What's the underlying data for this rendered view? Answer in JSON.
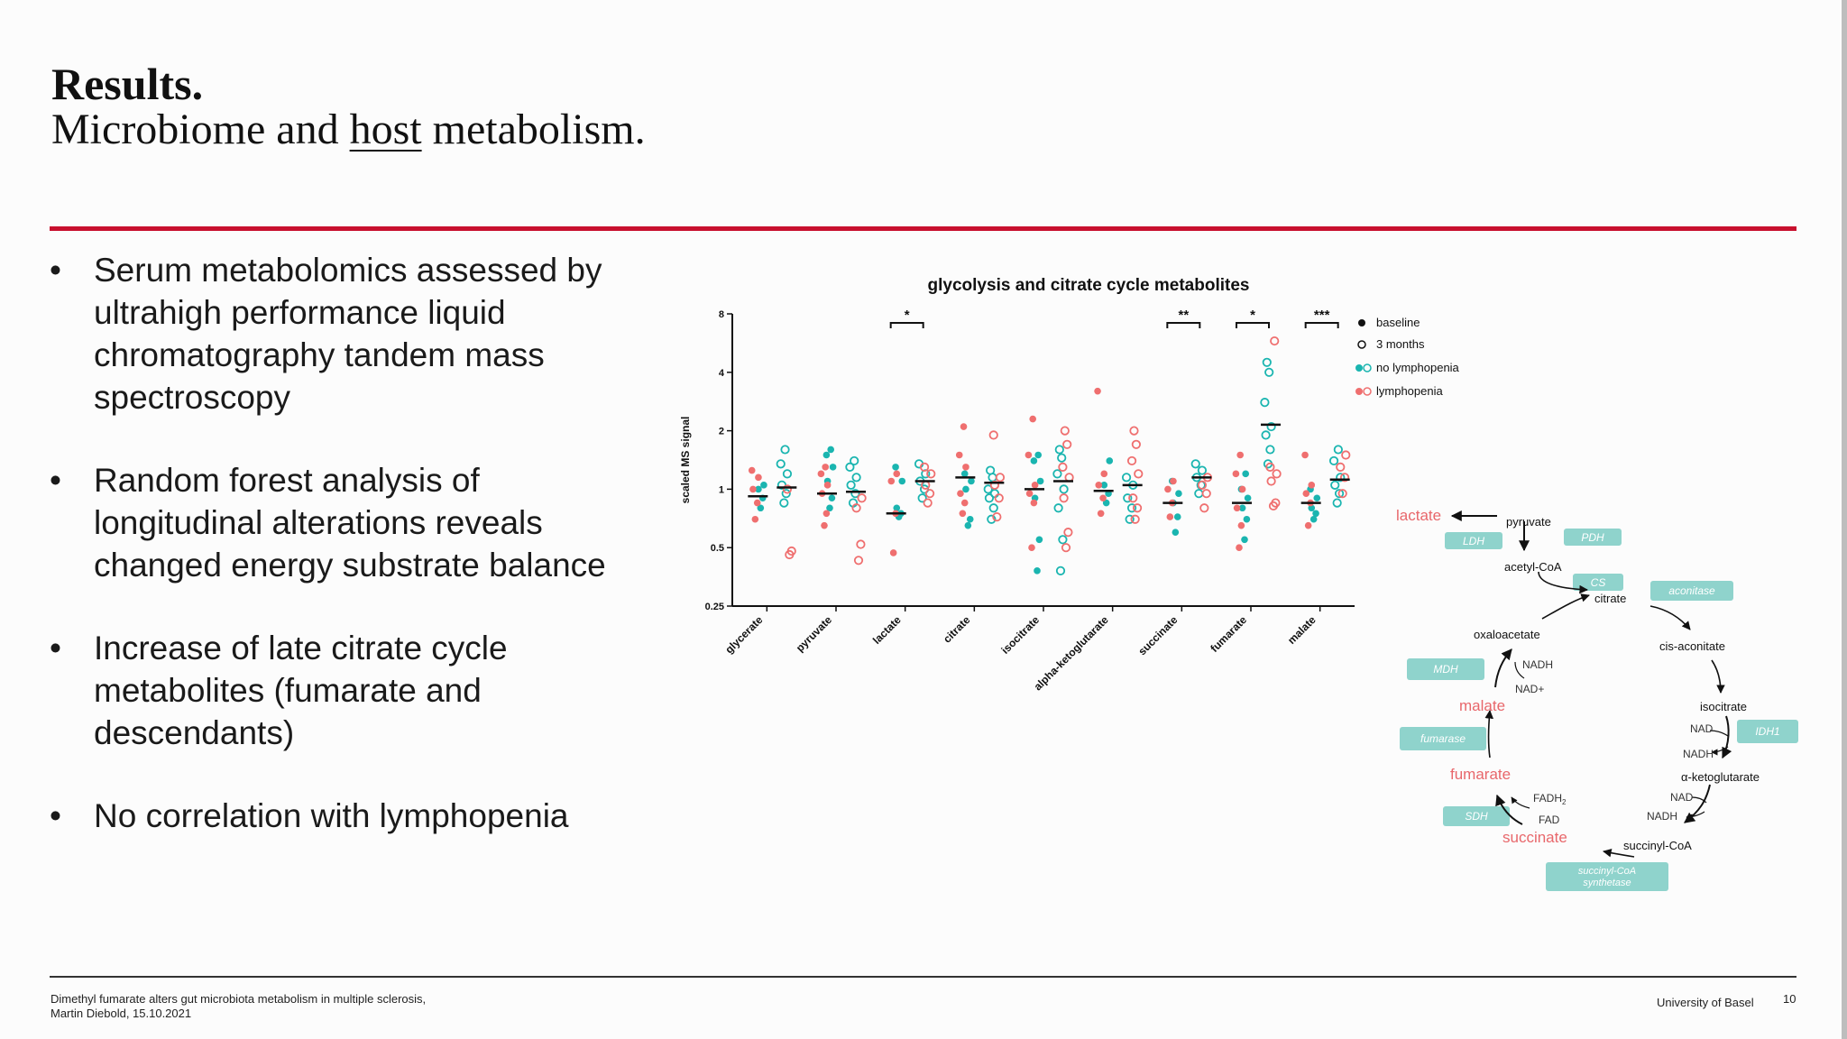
{
  "slide": {
    "title": "Results.",
    "subtitle_before": "Microbiome and ",
    "subtitle_underlined": "host",
    "subtitle_after": " metabolism.",
    "accent_color": "#c8102e",
    "page_number": "10"
  },
  "bullets": [
    "Serum metabolomics assessed by ultrahigh performance liquid chromatography tandem mass spectroscopy",
    "Random forest analysis of longitudinal alterations reveals changed energy substrate balance",
    "Increase of late citrate cycle metabolites (fumarate and descendants)",
    "No correlation with lymphopenia"
  ],
  "bullet_glyph": "•",
  "footer": {
    "line1": "Dimethyl fumarate alters gut microbiota metabolism in multiple sclerosis,",
    "line2": "Martin Diebold, 15.10.2021",
    "institution": "University of Basel"
  },
  "chart_data": {
    "type": "scatter",
    "title": "glycolysis and citrate cycle metabolites",
    "ylabel": "scaled MS signal",
    "yscale": "log2",
    "ylim": [
      0.25,
      8
    ],
    "yticks": [
      "0.25",
      "0.5",
      "1",
      "2",
      "4",
      "8"
    ],
    "ytick_values": [
      0.25,
      0.5,
      1,
      2,
      4,
      8
    ],
    "categories": [
      "glycerate",
      "pyruvate",
      "lactate",
      "citrate",
      "isocitrate",
      "alpha-ketoglutarate",
      "succinate",
      "fumarate",
      "malate"
    ],
    "legend": [
      "baseline",
      "3 months",
      "no lymphopenia",
      "lymphopenia"
    ],
    "legend_position": "top-right",
    "colors": {
      "no_lymphopenia": "#1ab5b0",
      "lymphopenia": "#ef6f6f",
      "black": "#111111"
    },
    "significance": [
      {
        "category": "lactate",
        "label": "*"
      },
      {
        "category": "succinate",
        "label": "**"
      },
      {
        "category": "fumarate",
        "label": "*"
      },
      {
        "category": "malate",
        "label": "***"
      }
    ],
    "medians": {
      "baseline": [
        0.92,
        0.95,
        0.75,
        1.15,
        1.0,
        0.98,
        0.85,
        0.85,
        0.85
      ],
      "three_months": [
        1.02,
        0.97,
        1.1,
        1.08,
        1.1,
        1.05,
        1.15,
        2.15,
        1.12
      ]
    },
    "series": [
      {
        "name": "baseline · no lymphopenia",
        "filled": true,
        "group": "no_lymphopenia",
        "time": "baseline",
        "values": [
          [
            0.8,
            0.9,
            1.0,
            1.05
          ],
          [
            0.8,
            0.9,
            1.1,
            1.3,
            1.5,
            1.6
          ],
          [
            0.72,
            0.75,
            0.8,
            1.1,
            1.3
          ],
          [
            0.65,
            0.7,
            1.0,
            1.1,
            1.2
          ],
          [
            0.38,
            0.55,
            0.9,
            1.1,
            1.4,
            1.5
          ],
          [
            0.85,
            0.95,
            1.05,
            1.4
          ],
          [
            0.6,
            0.72,
            0.85,
            0.95,
            1.1
          ],
          [
            0.55,
            0.7,
            0.8,
            0.9,
            1.0,
            1.2
          ],
          [
            0.7,
            0.75,
            0.8,
            0.9,
            1.0
          ]
        ]
      },
      {
        "name": "baseline · lymphopenia",
        "filled": true,
        "group": "lymphopenia",
        "time": "baseline",
        "values": [
          [
            0.7,
            0.85,
            1.0,
            1.15,
            1.25
          ],
          [
            0.65,
            0.75,
            0.95,
            1.05,
            1.2,
            1.3
          ],
          [
            0.47,
            0.75,
            1.1,
            1.2
          ],
          [
            0.75,
            0.85,
            0.95,
            1.3,
            1.5,
            2.1
          ],
          [
            0.5,
            0.85,
            0.95,
            1.05,
            1.5,
            2.3
          ],
          [
            0.75,
            0.9,
            1.05,
            1.2,
            3.2
          ],
          [
            0.72,
            0.85,
            1.0,
            1.1
          ],
          [
            0.5,
            0.65,
            0.8,
            1.0,
            1.2,
            1.5
          ],
          [
            0.65,
            0.85,
            0.95,
            1.05,
            1.5
          ]
        ]
      },
      {
        "name": "3 months · no lymphopenia",
        "filled": false,
        "group": "no_lymphopenia",
        "time": "three_months",
        "values": [
          [
            0.85,
            0.95,
            1.05,
            1.2,
            1.35,
            1.6
          ],
          [
            0.85,
            0.95,
            1.05,
            1.15,
            1.3,
            1.4
          ],
          [
            0.9,
            1.0,
            1.1,
            1.2,
            1.35
          ],
          [
            0.7,
            0.8,
            0.9,
            0.95,
            1.0,
            1.15,
            1.25
          ],
          [
            0.38,
            0.55,
            0.8,
            1.0,
            1.2,
            1.45,
            1.6
          ],
          [
            0.7,
            0.8,
            0.9,
            1.05,
            1.15
          ],
          [
            0.95,
            1.05,
            1.15,
            1.25,
            1.35
          ],
          [
            1.35,
            1.6,
            1.9,
            2.1,
            2.8,
            4.0,
            4.5
          ],
          [
            0.85,
            0.95,
            1.05,
            1.15,
            1.4,
            1.6
          ]
        ]
      },
      {
        "name": "3 months · lymphopenia",
        "filled": false,
        "group": "lymphopenia",
        "time": "three_months",
        "values": [
          [
            0.46,
            0.48,
            1.0
          ],
          [
            0.43,
            0.52,
            0.8,
            0.9
          ],
          [
            0.85,
            0.95,
            1.05,
            1.2,
            1.3
          ],
          [
            0.72,
            0.9,
            1.05,
            1.15,
            1.9
          ],
          [
            0.5,
            0.6,
            0.9,
            1.15,
            1.3,
            1.7,
            2.0
          ],
          [
            0.7,
            0.8,
            0.9,
            1.2,
            1.4,
            1.7,
            2.0
          ],
          [
            0.8,
            0.95,
            1.05,
            1.15
          ],
          [
            0.82,
            0.85,
            1.1,
            1.2,
            1.3,
            5.8
          ],
          [
            0.95,
            1.15,
            1.3,
            1.5
          ]
        ]
      }
    ]
  },
  "cycle": {
    "metabolites": {
      "lactate": "lactate",
      "pyruvate": "pyruvate",
      "acetyl_coa": "acetyl-CoA",
      "citrate": "citrate",
      "cis_aconitate": "cis-aconitate",
      "isocitrate": "isocitrate",
      "a_kg": "α-ketoglutarate",
      "succinyl_coa": "succinyl-CoA",
      "succinate": "succinate",
      "fumarate": "fumarate",
      "malate": "malate",
      "oxaloacetate": "oxaloacetate"
    },
    "cofactors": {
      "nadh": "NADH",
      "nad_plus": "NAD+",
      "nad_short": "NAD",
      "fadh": "FADH",
      "fadh_sub": "2",
      "fad": "FAD"
    },
    "enzymes": {
      "ldh": "LDH",
      "pdh": "PDH",
      "cs": "CS",
      "aconitase": "aconitase",
      "idh1": "IDH1",
      "mdh": "MDH",
      "fumarase": "fumarase",
      "sdh": "SDH",
      "scs_line1": "succinyl-CoA",
      "scs_line2": "synthetase"
    },
    "colors": {
      "highlight": "#e8676b",
      "enzyme_box": "#8fd3cc"
    }
  }
}
